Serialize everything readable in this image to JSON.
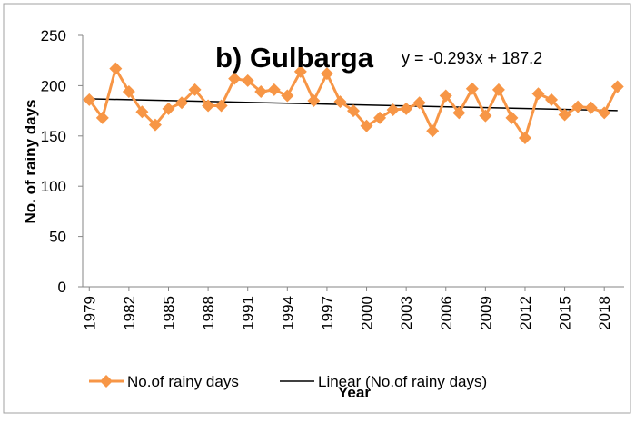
{
  "chart_data": {
    "type": "line",
    "title": "b) Gulbarga",
    "x_label": "Year",
    "y_label": "No. of rainy days",
    "x": [
      1979,
      1980,
      1981,
      1982,
      1983,
      1984,
      1985,
      1986,
      1987,
      1988,
      1989,
      1990,
      1991,
      1992,
      1993,
      1994,
      1995,
      1996,
      1997,
      1998,
      1999,
      2000,
      2001,
      2002,
      2003,
      2004,
      2005,
      2006,
      2007,
      2008,
      2009,
      2010,
      2011,
      2012,
      2013,
      2014,
      2015,
      2016,
      2017,
      2018,
      2019
    ],
    "series": [
      {
        "name": "No.of rainy days",
        "color": "#f79646",
        "values": [
          186,
          168,
          217,
          194,
          174,
          161,
          177,
          183,
          196,
          180,
          180,
          207,
          205,
          194,
          196,
          190,
          214,
          185,
          212,
          184,
          175,
          160,
          168,
          176,
          177,
          183,
          155,
          190,
          173,
          197,
          170,
          196,
          168,
          148,
          192,
          186,
          171,
          179,
          178,
          173,
          199
        ]
      }
    ],
    "trendline": {
      "name": "Linear (No.of rainy days)",
      "color": "#000000",
      "slope": -0.293,
      "intercept": 187.2,
      "equation": "y = -0.293x + 187.2"
    },
    "xlim": [
      1978.5,
      2019.5
    ],
    "xticks": [
      1979,
      1982,
      1985,
      1988,
      1991,
      1994,
      1997,
      2000,
      2003,
      2006,
      2009,
      2012,
      2015,
      2018
    ],
    "ylim": [
      0,
      250
    ],
    "yticks": [
      0,
      50,
      100,
      150,
      200,
      250
    ],
    "grid": false
  }
}
